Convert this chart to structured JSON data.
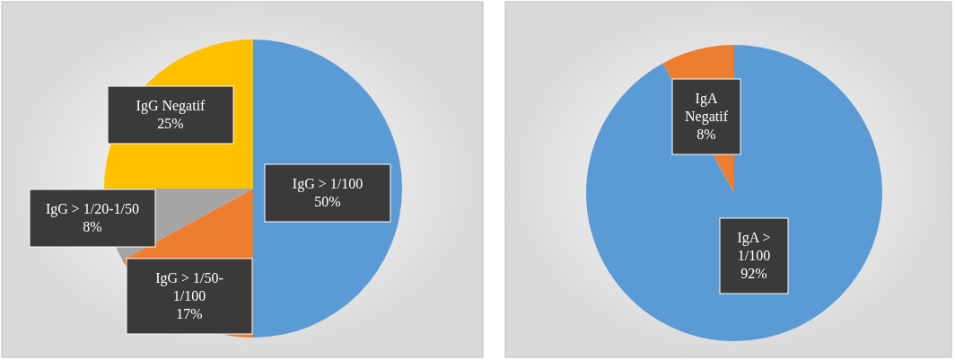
{
  "chart_data": [
    {
      "type": "pie",
      "categories": [
        "IgG > 1/100",
        "IgG > 1/50-1/100",
        "IgG > 1/20-1/50",
        "IgG Negatif"
      ],
      "values": [
        50,
        17,
        8,
        25
      ],
      "colors": [
        "#5b9bd5",
        "#ed7d31",
        "#a5a5a5",
        "#ffc000"
      ],
      "value_labels": [
        "50%",
        "17%",
        "8%",
        "25%"
      ]
    },
    {
      "type": "pie",
      "categories": [
        "IgA > 1/100",
        "IgA Negatif"
      ],
      "values": [
        92,
        8
      ],
      "colors": [
        "#5b9bd5",
        "#ed7d31"
      ],
      "value_labels": [
        "92%",
        "8%"
      ]
    }
  ]
}
